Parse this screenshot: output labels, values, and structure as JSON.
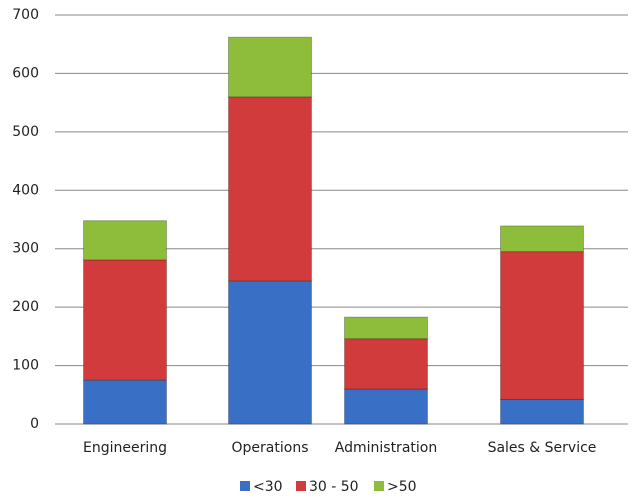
{
  "chart_data": {
    "type": "stacked_bar",
    "categories": [
      "Engineering",
      "Operations",
      "Administration",
      "Sales & Service"
    ],
    "series": [
      {
        "name": "<30",
        "color": "#3a6fc6",
        "values": [
          75,
          245,
          60,
          42
        ]
      },
      {
        "name": "30 - 50",
        "color": "#d13b3b",
        "values": [
          206,
          315,
          86,
          253
        ]
      },
      {
        "name": ">50",
        "color": "#8dbd3a",
        "values": [
          67,
          102,
          37,
          44
        ]
      }
    ],
    "ylim": [
      0,
      700
    ],
    "yticks": [
      0,
      100,
      200,
      300,
      400,
      500,
      600,
      700
    ],
    "grid": true,
    "legend": "bottom"
  }
}
